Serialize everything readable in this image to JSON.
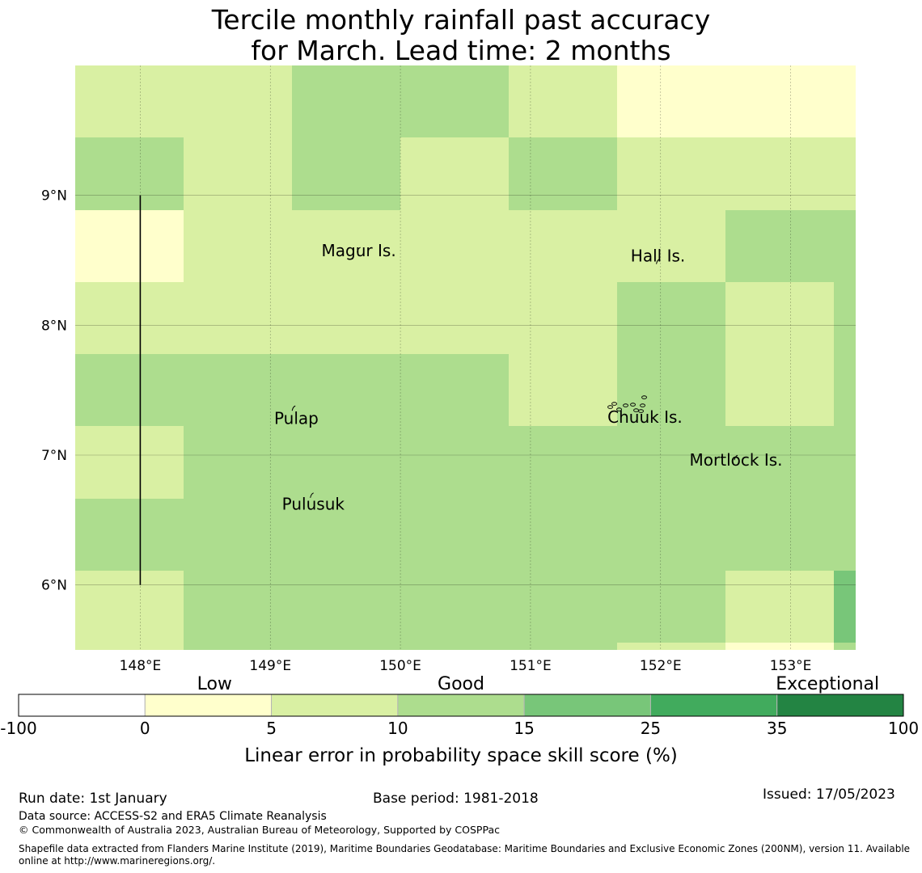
{
  "title": {
    "line1": "Tercile monthly rainfall past accuracy",
    "line2": "for March. Lead time: 2 months"
  },
  "map": {
    "lon_range": [
      147.5,
      153.5
    ],
    "lat_range": [
      5.5,
      10.0
    ],
    "lon_ticks": [
      148,
      149,
      150,
      151,
      152,
      153
    ],
    "lon_tick_labels": [
      "148°E",
      "149°E",
      "150°E",
      "151°E",
      "152°E",
      "153°E"
    ],
    "lat_ticks": [
      9,
      8,
      7,
      6
    ],
    "lat_tick_labels": [
      "9°N",
      "8°N",
      "7°N",
      "6°N"
    ],
    "cell_lon_edges": [
      147.5,
      148.333,
      149.167,
      150.0,
      150.833,
      151.667,
      152.5,
      153.333,
      153.5
    ],
    "cell_lat_edges": [
      10.0,
      9.444,
      8.889,
      8.333,
      7.778,
      7.222,
      6.667,
      6.111,
      5.556,
      5.5
    ],
    "cell_classes": [
      [
        2,
        2,
        3,
        3,
        2,
        1,
        1,
        1
      ],
      [
        3,
        2,
        3,
        2,
        3,
        2,
        2,
        2
      ],
      [
        1,
        2,
        2,
        2,
        2,
        2,
        3,
        3
      ],
      [
        2,
        2,
        2,
        2,
        2,
        3,
        2,
        3
      ],
      [
        3,
        3,
        3,
        3,
        2,
        3,
        2,
        3
      ],
      [
        2,
        3,
        3,
        3,
        3,
        3,
        3,
        3
      ],
      [
        3,
        3,
        3,
        3,
        3,
        3,
        3,
        3
      ],
      [
        2,
        3,
        3,
        3,
        3,
        3,
        2,
        4
      ],
      [
        2,
        3,
        3,
        3,
        3,
        2,
        1,
        3
      ]
    ],
    "meridian_line": {
      "lon": 148,
      "lat_from": 6.0,
      "lat_to": 9.0
    },
    "islands": [
      {
        "name": "Magur Is.",
        "lon": 149.68,
        "lat": 8.58,
        "label_lon": 149.68,
        "label_lat": 8.53
      },
      {
        "name": "Hall Is.",
        "lon": 151.98,
        "lat": 8.49,
        "label_lon": 151.98,
        "label_lat": 8.49
      },
      {
        "name": "Pulap",
        "lon": 149.18,
        "lat": 7.36,
        "label_lon": 149.2,
        "label_lat": 7.24
      },
      {
        "name": "Chuuk Is.",
        "lon": 151.75,
        "lat": 7.37,
        "label_lon": 151.88,
        "label_lat": 7.25
      },
      {
        "name": "Mortlock Is.",
        "lon": 152.58,
        "lat": 6.98,
        "label_lon": 152.58,
        "label_lat": 6.92
      },
      {
        "name": "Pulusuk",
        "lon": 149.32,
        "lat": 6.69,
        "label_lon": 149.33,
        "label_lat": 6.58
      }
    ]
  },
  "colorbar": {
    "categories": [
      "Low",
      "Good",
      "Exceptional"
    ],
    "boundaries": [
      "-100",
      "0",
      "5",
      "10",
      "15",
      "25",
      "35",
      "100"
    ],
    "colors": [
      "#ffffff",
      "#ffffcc",
      "#d9f0a3",
      "#addd8e",
      "#78c679",
      "#41ab5d",
      "#238443"
    ],
    "label": "Linear error in probability space skill score (%)"
  },
  "footer": {
    "run_date": "Run date: 1st January",
    "base_period": "Base period: 1981-2018",
    "issued": "Issued: 17/05/2023",
    "data_source": "Data source: ACCESS-S2 and ERA5 Climate Reanalysis",
    "copyright": "© Commonwealth of Australia 2023, Australian Bureau of Meteorology, Supported by COSPPac",
    "shapefile_line1": "Shapefile data extracted from Flanders Marine Institute (2019), Maritime Boundaries Geodatabase: Maritime Boundaries and Exclusive Economic Zones (200NM), version 11. Available",
    "shapefile_line2": "online at http://www.marineregions.org/."
  }
}
